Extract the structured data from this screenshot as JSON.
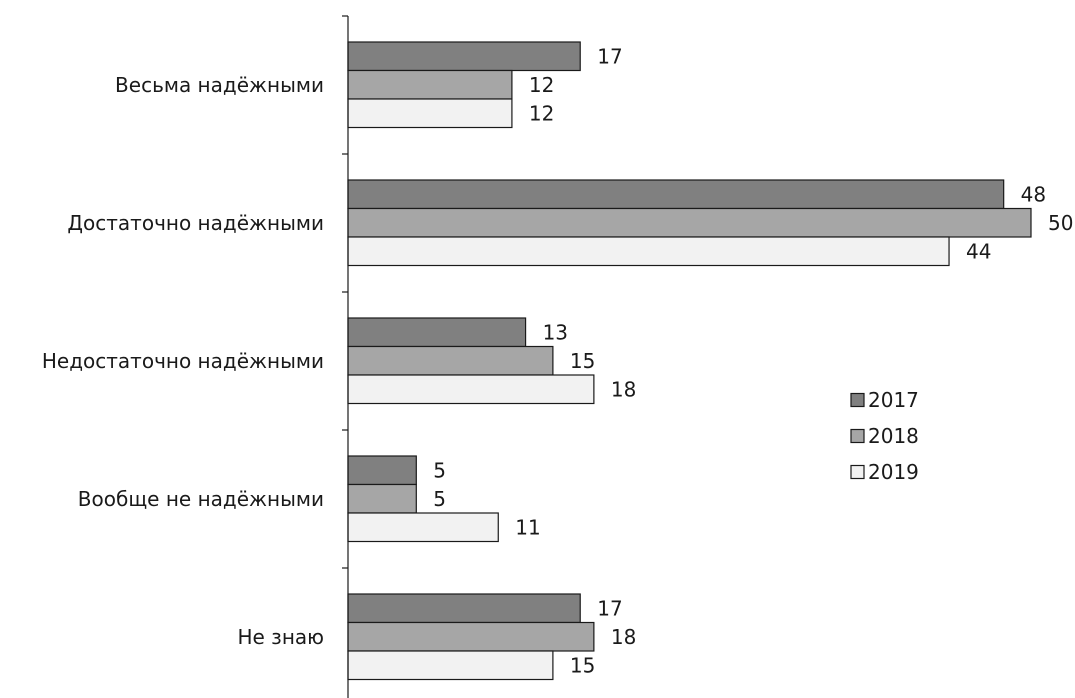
{
  "chart_data": {
    "type": "bar",
    "orientation": "horizontal",
    "categories": [
      "Весьма надёжными",
      "Достаточно надёжными",
      "Недостаточно надёжными",
      "Вообще не надёжными",
      "Не знаю"
    ],
    "series": [
      {
        "name": "2017",
        "values": [
          17,
          48,
          13,
          5,
          17
        ]
      },
      {
        "name": "2018",
        "values": [
          12,
          50,
          15,
          5,
          18
        ]
      },
      {
        "name": "2019",
        "values": [
          12,
          44,
          18,
          11,
          15
        ]
      }
    ],
    "colors": [
      "#808080",
      "#a6a6a6",
      "#f2f2f2"
    ],
    "title": "",
    "xlabel": "",
    "ylabel": "",
    "xlim": [
      0,
      50
    ],
    "grid": false,
    "legend": "right"
  }
}
